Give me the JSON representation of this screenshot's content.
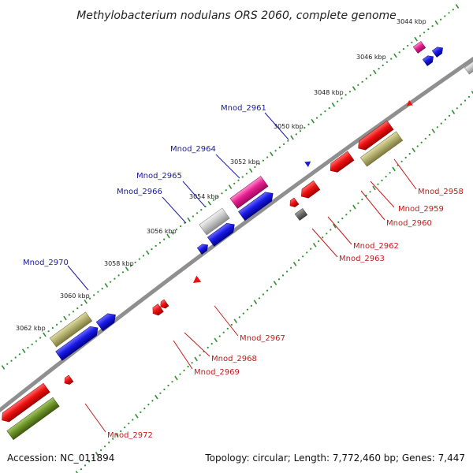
{
  "title": "Methylobacterium nodulans ORS 2060, complete genome",
  "footer": {
    "accession": "Accession: NC_011894",
    "summary": "Topology: circular; Length: 7,772,460 bp; Genes: 7,447"
  },
  "colors": {
    "backbone": "#8f8f8f",
    "forward_label": "#1a1aa0",
    "reverse_label": "#c41a1a",
    "tick": "#2f8f2f"
  },
  "ticks": [
    "3044 kbp",
    "3046 kbp",
    "3048 kbp",
    "3050 kbp",
    "3052 kbp",
    "3054 kbp",
    "3056 kbp",
    "3058 kbp",
    "3060 kbp",
    "3062 kbp"
  ],
  "genes_forward": [
    "Mnod_2961",
    "Mnod_2964",
    "Mnod_2965",
    "Mnod_2966",
    "Mnod_2970"
  ],
  "genes_reverse": [
    "Mnod_2958",
    "Mnod_2959",
    "Mnod_2960",
    "Mnod_2962",
    "Mnod_2963",
    "Mnod_2967",
    "Mnod_2968",
    "Mnod_2969",
    "Mnod_2972"
  ],
  "feature_colors": {
    "cds": "#ee1111",
    "cds_forward": "#1a1ae6",
    "rrna": "#e81e90",
    "trna": "#b4b06e",
    "misc": "#c8c8c8",
    "pseudo": "#6e6e6e",
    "other": "#6e9428"
  }
}
